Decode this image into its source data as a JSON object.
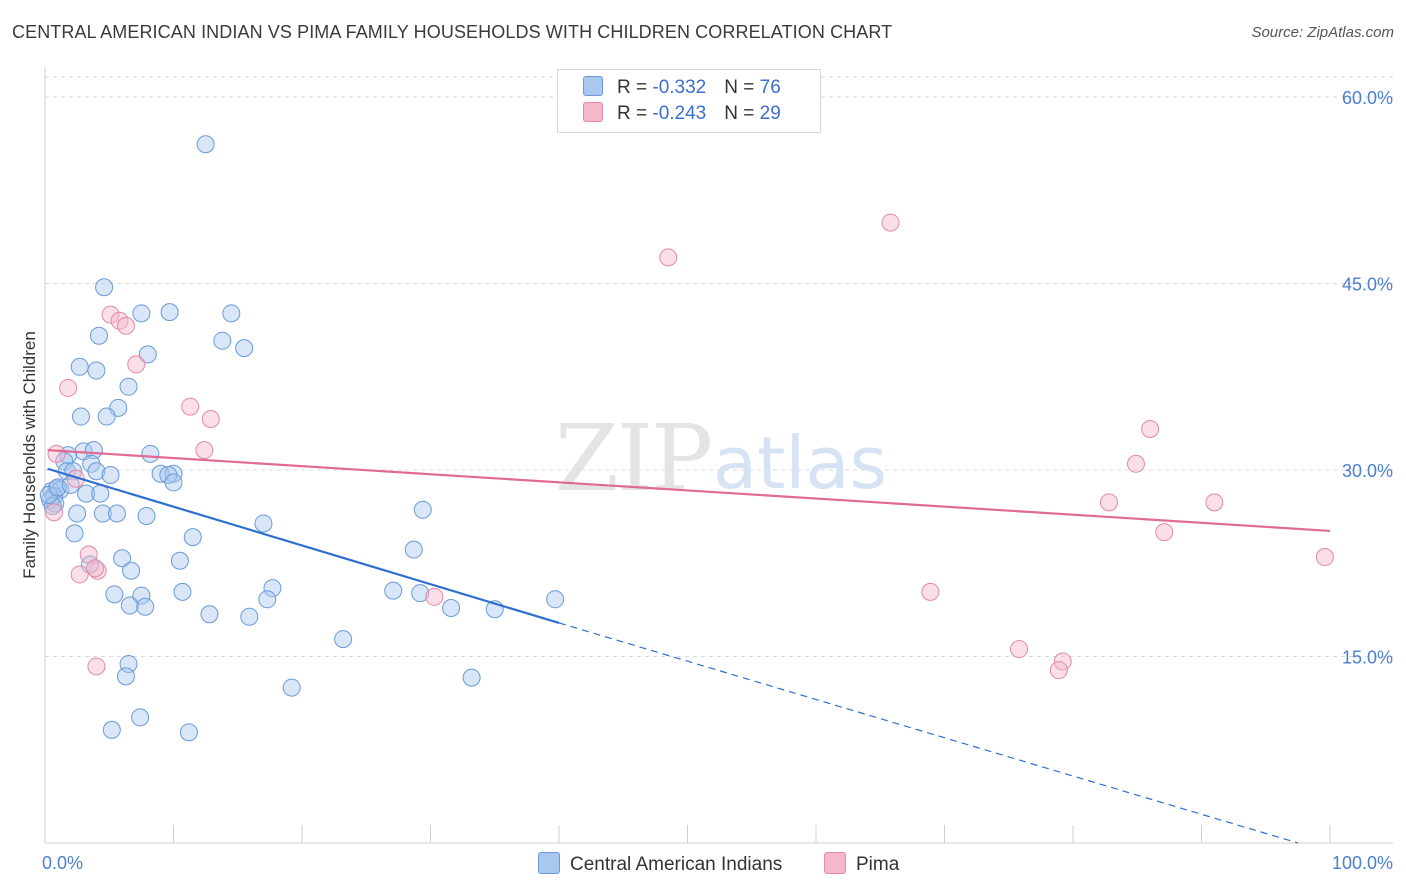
{
  "header": {
    "title": "CENTRAL AMERICAN INDIAN VS PIMA FAMILY HOUSEHOLDS WITH CHILDREN CORRELATION CHART",
    "source": "Source: ZipAtlas.com"
  },
  "watermark": {
    "zip": "ZIP",
    "atlas": "atlas"
  },
  "legend_box": {
    "rows": [
      {
        "r_label": "R = ",
        "r_value": "-0.332",
        "n_label": "N = ",
        "n_value": "76",
        "color": "#a9c8f0"
      },
      {
        "r_label": "R = ",
        "r_value": "-0.243",
        "n_label": "N = ",
        "n_value": "29",
        "color": "#f5b8cb"
      }
    ]
  },
  "colors": {
    "blue_fill": "#a9c8f0",
    "blue_stroke": "#6a9ad8",
    "blue_line": "#2f6fd0",
    "pink_fill": "#f5b8cb",
    "pink_stroke": "#e28aa8",
    "pink_line": "#e06a94",
    "grid": "#d9d9d9",
    "axis_text": "#4a7fd1"
  },
  "chart_data": {
    "type": "scatter",
    "title": "CENTRAL AMERICAN INDIAN VS PIMA FAMILY HOUSEHOLDS WITH CHILDREN CORRELATION CHART",
    "xlabel": "",
    "ylabel": "Family Households with Children",
    "xlim": [
      0,
      100
    ],
    "ylim": [
      0,
      60
    ],
    "y_ticks": [
      15,
      30,
      45,
      60
    ],
    "y_tick_labels": [
      "15.0%",
      "30.0%",
      "45.0%",
      "60.0%"
    ],
    "x_tick_labels": [
      "0.0%",
      "100.0%"
    ],
    "grid": true,
    "series": [
      {
        "name": "Central American Indians",
        "color": "#a9c8f0",
        "r": -0.332,
        "n": 76,
        "trend": {
          "x_start": 0.2,
          "y_start": 30.1,
          "x_solid_end": 40.0,
          "y_solid_end": 17.7,
          "x_dash_end": 97.5,
          "y_dash_end": 0.0
        },
        "points": [
          [
            12.5,
            56.2
          ],
          [
            4.6,
            44.7
          ],
          [
            7.5,
            42.6
          ],
          [
            9.7,
            42.7
          ],
          [
            14.5,
            42.6
          ],
          [
            4.2,
            40.8
          ],
          [
            13.8,
            40.4
          ],
          [
            15.5,
            39.8
          ],
          [
            8.0,
            39.3
          ],
          [
            2.7,
            38.3
          ],
          [
            4.0,
            38.0
          ],
          [
            6.5,
            36.7
          ],
          [
            5.7,
            35.0
          ],
          [
            2.8,
            34.3
          ],
          [
            4.8,
            34.3
          ],
          [
            3.0,
            31.5
          ],
          [
            3.8,
            31.6
          ],
          [
            8.2,
            31.3
          ],
          [
            1.8,
            31.2
          ],
          [
            1.5,
            30.7
          ],
          [
            3.6,
            30.5
          ],
          [
            1.7,
            29.9
          ],
          [
            2.2,
            29.9
          ],
          [
            4.0,
            29.9
          ],
          [
            5.1,
            29.6
          ],
          [
            9.0,
            29.7
          ],
          [
            10.0,
            29.7
          ],
          [
            9.6,
            29.6
          ],
          [
            10.0,
            29.0
          ],
          [
            0.9,
            28.5
          ],
          [
            0.5,
            28.3
          ],
          [
            1.2,
            28.4
          ],
          [
            0.7,
            27.9
          ],
          [
            3.2,
            28.1
          ],
          [
            4.3,
            28.1
          ],
          [
            0.4,
            27.6
          ],
          [
            0.8,
            27.3
          ],
          [
            0.6,
            27.1
          ],
          [
            2.5,
            26.5
          ],
          [
            4.5,
            26.5
          ],
          [
            5.6,
            26.5
          ],
          [
            7.9,
            26.3
          ],
          [
            17.0,
            25.7
          ],
          [
            29.4,
            26.8
          ],
          [
            2.3,
            24.9
          ],
          [
            11.5,
            24.6
          ],
          [
            28.7,
            23.6
          ],
          [
            6.0,
            22.9
          ],
          [
            10.5,
            22.7
          ],
          [
            3.5,
            22.4
          ],
          [
            6.7,
            21.9
          ],
          [
            7.5,
            19.9
          ],
          [
            17.7,
            20.5
          ],
          [
            10.7,
            20.2
          ],
          [
            5.4,
            20.0
          ],
          [
            27.1,
            20.3
          ],
          [
            29.2,
            20.1
          ],
          [
            17.3,
            19.6
          ],
          [
            39.7,
            19.6
          ],
          [
            6.6,
            19.1
          ],
          [
            7.8,
            19.0
          ],
          [
            31.6,
            18.9
          ],
          [
            35.0,
            18.8
          ],
          [
            12.8,
            18.4
          ],
          [
            15.9,
            18.2
          ],
          [
            23.2,
            16.4
          ],
          [
            6.5,
            14.4
          ],
          [
            6.3,
            13.4
          ],
          [
            33.2,
            13.3
          ],
          [
            19.2,
            12.5
          ],
          [
            7.4,
            10.1
          ],
          [
            5.2,
            9.1
          ],
          [
            11.2,
            8.9
          ],
          [
            0.3,
            28.0
          ],
          [
            1.0,
            28.6
          ],
          [
            2.0,
            28.8
          ]
        ]
      },
      {
        "name": "Pima",
        "color": "#f5b8cb",
        "r": -0.243,
        "n": 29,
        "trend": {
          "x_start": 0.2,
          "y_start": 31.6,
          "x_end": 100.0,
          "y_end": 25.1
        },
        "points": [
          [
            65.8,
            49.9
          ],
          [
            48.5,
            47.1
          ],
          [
            5.1,
            42.5
          ],
          [
            5.8,
            42.0
          ],
          [
            6.3,
            41.6
          ],
          [
            7.1,
            38.5
          ],
          [
            1.8,
            36.6
          ],
          [
            11.3,
            35.1
          ],
          [
            12.9,
            34.1
          ],
          [
            12.4,
            31.6
          ],
          [
            86.0,
            33.3
          ],
          [
            84.9,
            30.5
          ],
          [
            0.9,
            31.3
          ],
          [
            82.8,
            27.4
          ],
          [
            91.0,
            27.4
          ],
          [
            0.7,
            26.6
          ],
          [
            87.1,
            25.0
          ],
          [
            99.6,
            23.0
          ],
          [
            3.4,
            23.2
          ],
          [
            4.1,
            21.9
          ],
          [
            2.7,
            21.6
          ],
          [
            3.9,
            22.1
          ],
          [
            68.9,
            20.2
          ],
          [
            30.3,
            19.8
          ],
          [
            75.8,
            15.6
          ],
          [
            79.2,
            14.6
          ],
          [
            78.9,
            13.9
          ],
          [
            4.0,
            14.2
          ],
          [
            2.4,
            29.3
          ]
        ]
      }
    ]
  }
}
